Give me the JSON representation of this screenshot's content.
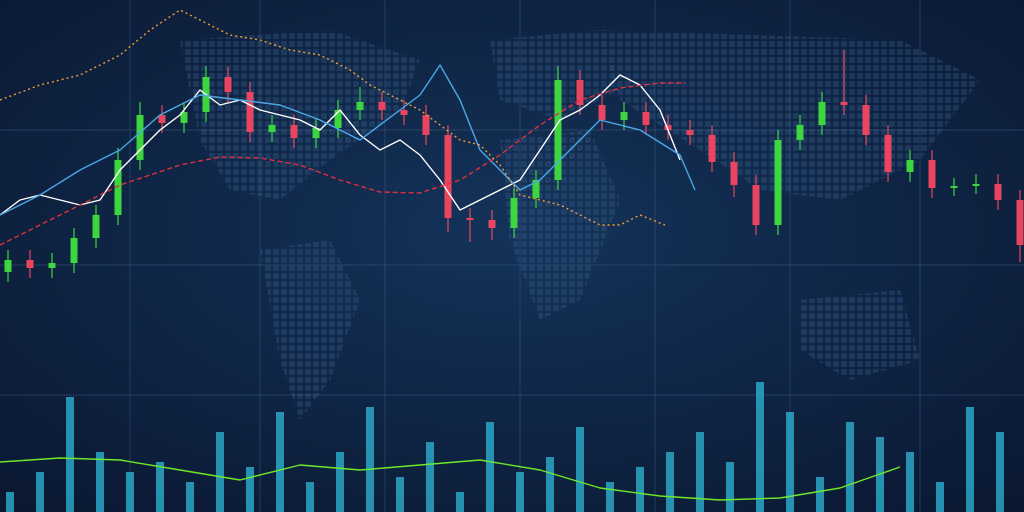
{
  "chart_data": {
    "type": "candlestick",
    "xlim": [
      0,
      1024
    ],
    "ylim": [
      0,
      512
    ],
    "xticks": [
      130,
      260,
      385,
      520,
      655,
      790,
      920
    ],
    "yticks": [
      117,
      247,
      382
    ],
    "grid": true,
    "up_color": "#3ed63e",
    "down_color": "#ea4560",
    "x": [
      8,
      30,
      52,
      74,
      96,
      118,
      140,
      162,
      184,
      206,
      228,
      250,
      272,
      294,
      316,
      338,
      360,
      382,
      404,
      426,
      448,
      470,
      492,
      514,
      536,
      558,
      580,
      602,
      624,
      646,
      668,
      690,
      712,
      734,
      756,
      778,
      800,
      822,
      844,
      866,
      888,
      910,
      932,
      954,
      976,
      998,
      1020
    ],
    "open": [
      240,
      252,
      244,
      249,
      274,
      297,
      352,
      397,
      389,
      400,
      435,
      420,
      380,
      387,
      374,
      384,
      402,
      410,
      402,
      397,
      377,
      294,
      292,
      284,
      314,
      332,
      432,
      407,
      392,
      400,
      387,
      382,
      377,
      350,
      327,
      287,
      372,
      387,
      410,
      407,
      377,
      340,
      352,
      324,
      326,
      328,
      312
    ],
    "high": [
      262,
      262,
      259,
      284,
      307,
      364,
      410,
      407,
      410,
      446,
      445,
      430,
      397,
      397,
      394,
      412,
      425,
      420,
      412,
      407,
      387,
      304,
      302,
      324,
      342,
      446,
      442,
      417,
      410,
      410,
      397,
      392,
      387,
      360,
      337,
      382,
      397,
      420,
      462,
      417,
      387,
      362,
      362,
      334,
      338,
      338,
      322
    ],
    "low": [
      230,
      234,
      234,
      239,
      264,
      287,
      342,
      379,
      379,
      390,
      410,
      370,
      370,
      364,
      364,
      374,
      392,
      392,
      387,
      367,
      280,
      270,
      272,
      274,
      304,
      322,
      397,
      382,
      382,
      377,
      372,
      367,
      340,
      315,
      277,
      277,
      362,
      377,
      397,
      367,
      330,
      330,
      314,
      316,
      318,
      302,
      250
    ],
    "close": [
      252,
      244,
      249,
      274,
      297,
      352,
      397,
      389,
      400,
      435,
      420,
      380,
      387,
      374,
      384,
      402,
      410,
      402,
      397,
      377,
      294,
      292,
      284,
      314,
      332,
      432,
      407,
      392,
      400,
      387,
      382,
      377,
      350,
      327,
      287,
      372,
      387,
      410,
      407,
      377,
      340,
      352,
      324,
      326,
      328,
      312,
      267
    ],
    "overlays": [
      {
        "color": "#ffffff",
        "style": "solid",
        "x": [
          0,
          20,
          40,
          60,
          80,
          100,
          120,
          140,
          160,
          180,
          200,
          220,
          240,
          260,
          280,
          300,
          320,
          340,
          360,
          380,
          400,
          420,
          440,
          460,
          480,
          500,
          520,
          540,
          560,
          580,
          600,
          620,
          640,
          660,
          680
        ],
        "values": [
          297,
          312,
          317,
          312,
          307,
          312,
          342,
          362,
          382,
          397,
          422,
          407,
          412,
          402,
          397,
          392,
          382,
          402,
          377,
          362,
          372,
          357,
          332,
          302,
          312,
          322,
          332,
          362,
          392,
          402,
          417,
          437,
          427,
          402,
          352
        ]
      },
      {
        "color": "#4aa8e8",
        "style": "solid",
        "x": [
          0,
          40,
          80,
          120,
          160,
          200,
          240,
          280,
          320,
          360,
          400,
          420,
          440,
          460,
          480,
          500,
          520,
          540,
          560,
          580,
          600,
          640,
          680,
          695
        ],
        "values": [
          297,
          317,
          342,
          362,
          397,
          417,
          412,
          407,
          392,
          372,
          402,
          417,
          447,
          412,
          362,
          342,
          322,
          332,
          352,
          372,
          392,
          382,
          357,
          322
        ]
      },
      {
        "color": "#e0303c",
        "style": "dashed",
        "x": [
          0,
          60,
          120,
          180,
          220,
          260,
          300,
          340,
          380,
          420,
          460,
          500,
          540,
          580,
          620,
          660,
          685
        ],
        "values": [
          267,
          297,
          327,
          347,
          355,
          354,
          347,
          332,
          320,
          319,
          332,
          357,
          387,
          412,
          424,
          429,
          429
        ]
      },
      {
        "color": "#f0a030",
        "style": "dotted",
        "x": [
          0,
          40,
          80,
          120,
          150,
          180,
          200,
          230,
          260,
          290,
          320,
          350,
          370,
          400,
          420,
          440,
          460,
          480,
          500,
          520,
          540,
          560,
          580,
          600,
          620,
          640,
          665
        ],
        "values": [
          412,
          427,
          437,
          457,
          482,
          502,
          492,
          477,
          472,
          462,
          457,
          442,
          427,
          412,
          402,
          387,
          372,
          367,
          347,
          317,
          312,
          307,
          297,
          287,
          287,
          297,
          287
        ]
      },
      {
        "color": "#6ee82a",
        "style": "solid",
        "x": [
          0,
          60,
          120,
          180,
          240,
          300,
          360,
          420,
          480,
          540,
          600,
          660,
          720,
          780,
          840,
          900
        ],
        "values": [
          50,
          54,
          52,
          42,
          32,
          47,
          42,
          47,
          52,
          42,
          24,
          16,
          12,
          14,
          24,
          45
        ]
      }
    ],
    "volume": {
      "color": "#2fb8d8",
      "x": [
        10,
        40,
        70,
        100,
        130,
        160,
        190,
        220,
        250,
        280,
        310,
        340,
        370,
        400,
        430,
        460,
        490,
        520,
        550,
        580,
        610,
        640,
        670,
        700,
        730,
        760,
        790,
        820,
        850,
        880,
        910,
        940,
        970,
        1000
      ],
      "values": [
        20,
        40,
        115,
        60,
        40,
        50,
        30,
        80,
        45,
        100,
        30,
        60,
        105,
        35,
        70,
        20,
        90,
        40,
        55,
        85,
        30,
        45,
        60,
        80,
        50,
        130,
        100,
        35,
        90,
        75,
        60,
        30,
        105,
        80
      ]
    }
  }
}
